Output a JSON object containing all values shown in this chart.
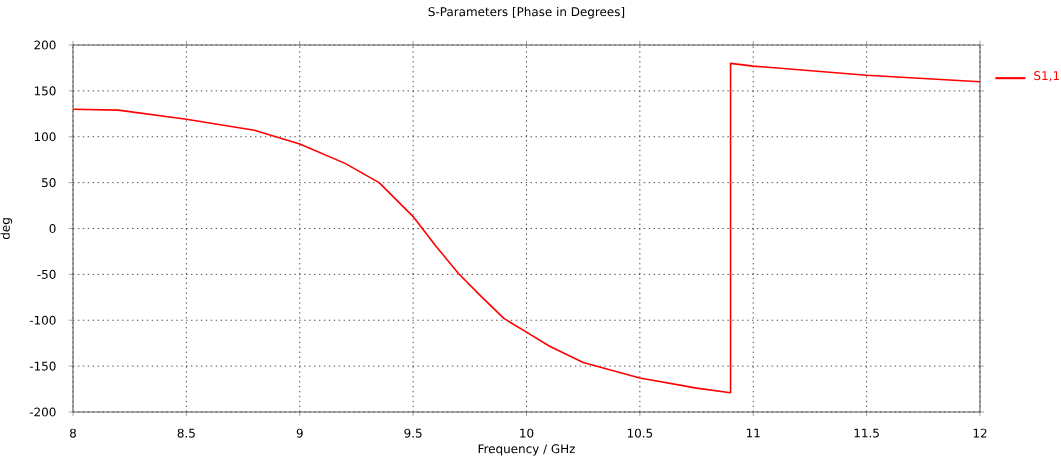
{
  "chart_data": {
    "type": "line",
    "title": "S-Parameters [Phase in Degrees]",
    "xlabel": "Frequency / GHz",
    "ylabel": "deg",
    "x": [
      8,
      8.2,
      8.5,
      8.8,
      9.0,
      9.2,
      9.35,
      9.5,
      9.6,
      9.7,
      9.8,
      9.9,
      10.0,
      10.1,
      10.25,
      10.5,
      10.75,
      10.9,
      10.9,
      11.0,
      11.5,
      12
    ],
    "series": [
      {
        "name": "S1,1",
        "color": "#ff0000",
        "values": [
          130,
          129,
          119,
          107,
          92,
          71,
          50,
          13,
          -19,
          -49,
          -74,
          -98,
          -113,
          -128,
          -146,
          -163,
          -174,
          -179,
          180,
          177,
          167,
          160
        ]
      }
    ],
    "xlim": [
      8,
      12
    ],
    "ylim": [
      -200,
      200
    ],
    "xticks": [
      8,
      8.5,
      9,
      9.5,
      10,
      10.5,
      11,
      11.5,
      12
    ],
    "yticks": [
      -200,
      -150,
      -100,
      -50,
      0,
      50,
      100,
      150,
      200
    ],
    "grid": true,
    "legend": "top right",
    "line_style": "solid",
    "marker": "none"
  }
}
